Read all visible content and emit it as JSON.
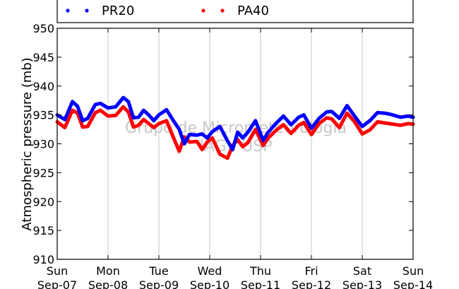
{
  "chart_data": {
    "type": "line",
    "title": "",
    "ylabel": "Atmospheric pressure (mb)",
    "xlabel": "",
    "ylim": [
      910,
      950
    ],
    "y_ticks": [
      910,
      915,
      920,
      925,
      930,
      935,
      940,
      945,
      950
    ],
    "grid": "vertical",
    "legend_position": "top, above plot",
    "watermark": [
      "Grupo de Micrometeorologia",
      "IAG / USP"
    ],
    "x_ticks": [
      {
        "day": "Sun",
        "date": "Sep-07"
      },
      {
        "day": "Mon",
        "date": "Sep-08"
      },
      {
        "day": "Tue",
        "date": "Sep-09"
      },
      {
        "day": "Wed",
        "date": "Sep-10"
      },
      {
        "day": "Thu",
        "date": "Sep-11"
      },
      {
        "day": "Fri",
        "date": "Sep-12"
      },
      {
        "day": "Sat",
        "date": "Sep-13"
      },
      {
        "day": "Sun",
        "date": "Sep-14"
      }
    ],
    "x_units": "days from Sep-07 00:00",
    "x": [
      0,
      0.15,
      0.3,
      0.4,
      0.5,
      0.6,
      0.75,
      0.85,
      1.0,
      1.15,
      1.3,
      1.4,
      1.5,
      1.6,
      1.7,
      1.8,
      1.9,
      2.0,
      2.15,
      2.3,
      2.4,
      2.5,
      2.6,
      2.75,
      2.85,
      2.95,
      3.05,
      3.2,
      3.35,
      3.45,
      3.55,
      3.65,
      3.75,
      3.9,
      4.05,
      4.15,
      4.3,
      4.45,
      4.6,
      4.75,
      4.85,
      5.0,
      5.15,
      5.3,
      5.4,
      5.55,
      5.7,
      5.85,
      6.0,
      6.15,
      6.3,
      6.45,
      6.6,
      6.75,
      6.9,
      7.0
    ],
    "series": [
      {
        "name": "PR20",
        "color": "#0000ff",
        "values": [
          935.0,
          934.2,
          937.3,
          936.5,
          934.0,
          934.4,
          936.8,
          937.0,
          936.2,
          936.4,
          938.0,
          937.3,
          934.5,
          934.6,
          935.8,
          935.0,
          934.0,
          935.0,
          935.9,
          933.8,
          932.5,
          930.0,
          931.6,
          931.5,
          931.7,
          931.0,
          932.1,
          933.0,
          930.5,
          929.0,
          932.0,
          931.0,
          932.0,
          934.0,
          930.6,
          932.0,
          933.5,
          934.8,
          933.3,
          934.6,
          935.0,
          932.7,
          934.4,
          935.5,
          935.6,
          934.4,
          936.6,
          934.8,
          933.0,
          934.0,
          935.4,
          935.3,
          935.0,
          934.6,
          934.8,
          934.6
        ]
      },
      {
        "name": "PA40",
        "color": "#ff0000",
        "values": [
          933.8,
          932.8,
          935.8,
          935.3,
          932.9,
          933.0,
          935.4,
          935.8,
          934.8,
          934.9,
          936.4,
          935.5,
          932.9,
          933.2,
          934.2,
          933.5,
          932.8,
          933.5,
          934.0,
          930.8,
          928.7,
          931.2,
          930.3,
          930.4,
          929.0,
          930.3,
          931.0,
          928.2,
          927.5,
          929.7,
          930.7,
          929.5,
          930.2,
          932.5,
          929.7,
          931.0,
          932.3,
          933.3,
          931.8,
          933.2,
          933.7,
          931.6,
          933.5,
          934.5,
          934.3,
          932.8,
          935.3,
          933.8,
          931.7,
          932.4,
          933.8,
          933.6,
          933.4,
          933.2,
          933.5,
          933.4
        ]
      }
    ]
  }
}
